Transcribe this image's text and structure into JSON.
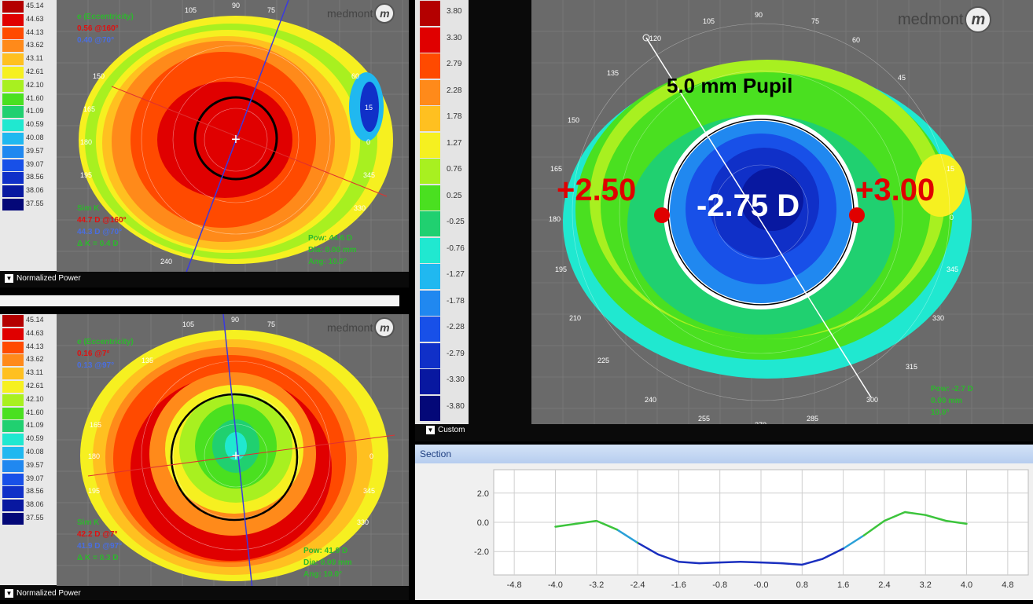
{
  "top_left": {
    "scale": [
      "45.14",
      "44.63",
      "44.13",
      "43.62",
      "43.11",
      "42.61",
      "42.10",
      "41.60",
      "41.09",
      "40.59",
      "40.08",
      "39.57",
      "39.07",
      "38.56",
      "38.06",
      "37.55"
    ],
    "eccentricity_title": "e (Eccentricity)",
    "ecc_flat": "0.56 @160°",
    "ecc_steep": "0.40 @70°",
    "simk_title": "Sim K",
    "simk_flat": "44.7 D @160°",
    "simk_steep": "44.3 D @70°",
    "simk_delta": "Δ K = 0.4 D",
    "pupil_pow": "Pow: 44.6 D",
    "pupil_dia": "Dia: 0.00 mm",
    "pupil_ang": "Ang: 10.0°",
    "footer": "Normalized Power",
    "meridians": [
      "105",
      "90",
      "75",
      "150",
      "60",
      "165",
      "180",
      "195",
      "345",
      "330",
      "240",
      "255",
      "270",
      "285",
      "15",
      "0"
    ]
  },
  "bottom_left": {
    "scale": [
      "45.14",
      "44.63",
      "44.13",
      "43.62",
      "43.11",
      "42.61",
      "42.10",
      "41.60",
      "41.09",
      "40.59",
      "40.08",
      "39.57",
      "39.07",
      "38.56",
      "38.06",
      "37.55"
    ],
    "eccentricity_title": "e (Eccentricity)",
    "ecc_flat": "0.16 @7°",
    "ecc_steep": "0.13 @97°",
    "simk_title": "Sim K",
    "simk_flat": "42.2 D @7°",
    "simk_steep": "41.9 D @97°",
    "simk_delta": "Δ K = 0.3 D",
    "pupil_pow": "Pow: 41.9 D",
    "pupil_dia": "Dia: 0.00 mm",
    "pupil_ang": "Ang: 10.0°",
    "footer": "Normalized Power",
    "meridians": [
      "105",
      "90",
      "75",
      "135",
      "165",
      "180",
      "195",
      "345",
      "0",
      "330"
    ]
  },
  "right_map": {
    "scale": [
      "3.80",
      "3.30",
      "2.79",
      "2.28",
      "1.78",
      "1.27",
      "0.76",
      "0.25",
      "-0.25",
      "-0.76",
      "-1.27",
      "-1.78",
      "-2.28",
      "-2.79",
      "-3.30",
      "-3.80"
    ],
    "pupil_label": "5.0 mm Pupil",
    "center_value": "-2.75 D",
    "left_value": "+2.50",
    "right_value": "+3.00",
    "pow": "Pow: -2.7 D",
    "dia": "0.00 mm",
    "ang": "10.0°",
    "footer": "Custom",
    "meridians": [
      "120",
      "105",
      "90",
      "75",
      "60",
      "135",
      "45",
      "150",
      "15",
      "165",
      "0",
      "180",
      "195",
      "345",
      "210",
      "330",
      "225",
      "315",
      "240",
      "255",
      "270",
      "285",
      "300"
    ]
  },
  "logo_text": "medmont",
  "logo_mark": "m",
  "section": {
    "title": "Section",
    "y_ticks": [
      "2.0",
      "0.0",
      "-2.0"
    ],
    "x_ticks": [
      "-4.8",
      "-4.0",
      "-3.2",
      "-2.4",
      "-1.6",
      "-0.8",
      "-0.0",
      "0.8",
      "1.6",
      "2.4",
      "3.2",
      "4.0",
      "4.8"
    ]
  },
  "chart_data": {
    "type": "line",
    "x": [
      -4.0,
      -3.6,
      -3.2,
      -2.8,
      -2.4,
      -2.0,
      -1.6,
      -1.2,
      -0.8,
      -0.4,
      0.0,
      0.4,
      0.8,
      1.2,
      1.6,
      2.0,
      2.4,
      2.8,
      3.2,
      3.6,
      4.0
    ],
    "series": [
      {
        "values": [
          -0.3,
          -0.1,
          0.1,
          -0.5,
          -1.4,
          -2.2,
          -2.7,
          -2.8,
          -2.75,
          -2.7,
          -2.75,
          -2.8,
          -2.9,
          -2.5,
          -1.8,
          -0.9,
          0.1,
          0.7,
          0.5,
          0.1,
          -0.1
        ]
      }
    ],
    "xlim": [
      -5.2,
      5.2
    ],
    "ylim": [
      -3.6,
      3.6
    ],
    "grid": true
  },
  "colors": {
    "top_scale": [
      "#b40000",
      "#e00000",
      "#ff4a00",
      "#ff8a1a",
      "#ffc020",
      "#f6f020",
      "#a8f020",
      "#4ae020",
      "#20d070",
      "#20e8d0",
      "#20b8f0",
      "#2088f0",
      "#1850e8",
      "#1030c8",
      "#0818a0",
      "#040878"
    ],
    "right_scale": [
      "#b40000",
      "#e00000",
      "#ff4a00",
      "#ff8a1a",
      "#ffc020",
      "#f6f020",
      "#a8f020",
      "#4ae020",
      "#20d070",
      "#20e8d0",
      "#20b8f0",
      "#2088f0",
      "#1850e8",
      "#1030c8",
      "#0818a0",
      "#040878"
    ],
    "section_line_blue": "#1a2fbf",
    "section_line_green": "#3cc43c"
  }
}
